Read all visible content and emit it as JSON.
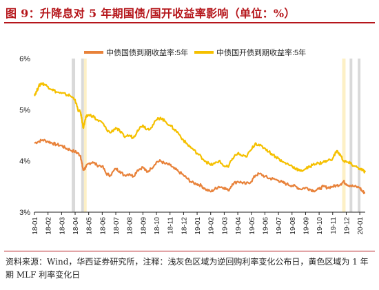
{
  "figure": {
    "title": "图 9：升降息对 5 年期国债/国开收益率影响（单位：%）",
    "source_note": "资料来源：Wind，华西证券研究所，注释：浅灰色区域为逆回购利率变化公布日，黄色区域为 1 年期 MLF 利率变化日"
  },
  "colors": {
    "gov": "#e8823a",
    "cdb": "#f5c000",
    "gray_band": "#d9d9d9",
    "yellow_band": "#fdf0c6",
    "accent": "#b5161b"
  },
  "chart_data": {
    "type": "line",
    "title": "",
    "xlabel": "",
    "ylabel": "",
    "ylim": [
      3,
      6
    ],
    "y_ticks": [
      "6%",
      "5%",
      "4%",
      "3%"
    ],
    "x_ticks": [
      "18-01",
      "18-02",
      "18-03",
      "18-04",
      "18-05",
      "18-06",
      "18-07",
      "18-08",
      "18-09",
      "18-10",
      "18-11",
      "18-12",
      "19-01",
      "19-02",
      "19-03",
      "19-04",
      "19-05",
      "19-06",
      "19-07",
      "19-08",
      "19-09",
      "19-10",
      "19-11",
      "19-12",
      "20-01"
    ],
    "legend_position": "top-center",
    "shaded_bands": [
      {
        "color": "gray",
        "x": [
          2.75,
          3.0
        ]
      },
      {
        "color": "gray",
        "x": [
          3.45,
          3.65
        ]
      },
      {
        "color": "yellow",
        "x": [
          3.65,
          3.85
        ]
      },
      {
        "color": "yellow",
        "x": [
          22.7,
          22.95
        ]
      },
      {
        "color": "gray",
        "x": [
          23.25,
          23.45
        ]
      },
      {
        "color": "gray",
        "x": [
          23.85,
          24.05
        ]
      }
    ],
    "series": [
      {
        "name": "中债国债到期收益率:5年",
        "x": [
          0,
          0.3,
          0.6,
          1,
          1.3,
          1.6,
          2,
          2.3,
          2.6,
          3,
          3.2,
          3.4,
          3.5,
          3.6,
          3.7,
          3.8,
          4,
          4.3,
          4.6,
          5,
          5.3,
          5.6,
          6,
          6.3,
          6.6,
          7,
          7.3,
          7.6,
          8,
          8.3,
          8.6,
          9,
          9.3,
          9.6,
          10,
          10.3,
          10.6,
          11,
          11.3,
          11.6,
          12,
          12.3,
          12.6,
          13,
          13.3,
          13.6,
          14,
          14.3,
          14.6,
          15,
          15.3,
          15.6,
          16,
          16.3,
          16.6,
          17,
          17.3,
          17.6,
          18,
          18.3,
          18.6,
          19,
          19.3,
          19.6,
          20,
          20.3,
          20.6,
          21,
          21.3,
          21.6,
          22,
          22.3,
          22.6,
          22.8,
          23,
          23.3,
          23.6,
          24,
          24.2,
          24.4
        ],
        "values": [
          4.35,
          4.38,
          4.41,
          4.38,
          4.35,
          4.32,
          4.3,
          4.25,
          4.22,
          4.18,
          4.15,
          4.1,
          3.95,
          3.82,
          3.85,
          3.88,
          3.95,
          3.98,
          3.92,
          3.9,
          3.75,
          3.72,
          3.85,
          3.8,
          3.72,
          3.75,
          3.7,
          3.82,
          3.88,
          3.78,
          3.85,
          3.98,
          4.0,
          3.95,
          3.92,
          3.85,
          3.8,
          3.72,
          3.65,
          3.58,
          3.55,
          3.52,
          3.45,
          3.4,
          3.45,
          3.5,
          3.48,
          3.42,
          3.55,
          3.6,
          3.58,
          3.55,
          3.6,
          3.72,
          3.75,
          3.7,
          3.66,
          3.65,
          3.62,
          3.58,
          3.55,
          3.52,
          3.5,
          3.45,
          3.48,
          3.45,
          3.42,
          3.45,
          3.5,
          3.48,
          3.5,
          3.52,
          3.55,
          3.6,
          3.55,
          3.52,
          3.5,
          3.48,
          3.4,
          3.38
        ]
      },
      {
        "name": "中债国开债到期收益率:5年",
        "x": [
          0,
          0.15,
          0.3,
          0.5,
          0.7,
          1,
          1.3,
          1.6,
          2,
          2.3,
          2.6,
          3,
          3.2,
          3.4,
          3.5,
          3.6,
          3.7,
          3.8,
          4,
          4.3,
          4.6,
          5,
          5.3,
          5.6,
          6,
          6.3,
          6.6,
          7,
          7.3,
          7.6,
          8,
          8.3,
          8.6,
          9,
          9.3,
          9.6,
          10,
          10.3,
          10.6,
          11,
          11.3,
          11.6,
          12,
          12.3,
          12.6,
          13,
          13.3,
          13.6,
          14,
          14.3,
          14.6,
          15,
          15.3,
          15.6,
          16,
          16.3,
          16.6,
          17,
          17.3,
          17.6,
          18,
          18.3,
          18.6,
          19,
          19.3,
          19.6,
          20,
          20.3,
          20.6,
          21,
          21.3,
          21.6,
          22,
          22.3,
          22.6,
          22.8,
          23,
          23.3,
          23.6,
          24,
          24.2,
          24.4
        ],
        "values": [
          5.3,
          5.35,
          5.45,
          5.52,
          5.5,
          5.45,
          5.4,
          5.35,
          5.32,
          5.3,
          5.28,
          5.2,
          5.0,
          4.95,
          4.8,
          4.65,
          4.75,
          4.85,
          4.9,
          4.88,
          4.8,
          4.75,
          4.62,
          4.55,
          4.65,
          4.58,
          4.48,
          4.5,
          4.45,
          4.6,
          4.7,
          4.62,
          4.65,
          4.8,
          4.85,
          4.78,
          4.7,
          4.62,
          4.55,
          4.4,
          4.32,
          4.25,
          4.15,
          4.08,
          4.0,
          3.92,
          3.95,
          4.0,
          3.9,
          3.88,
          4.05,
          4.15,
          4.1,
          4.08,
          4.22,
          4.35,
          4.3,
          4.25,
          4.18,
          4.12,
          4.05,
          3.98,
          3.95,
          3.9,
          3.85,
          3.8,
          3.85,
          3.88,
          3.95,
          3.95,
          3.98,
          4.0,
          4.05,
          4.2,
          4.1,
          4.0,
          3.98,
          3.95,
          3.9,
          3.85,
          3.82,
          3.78
        ]
      }
    ]
  }
}
